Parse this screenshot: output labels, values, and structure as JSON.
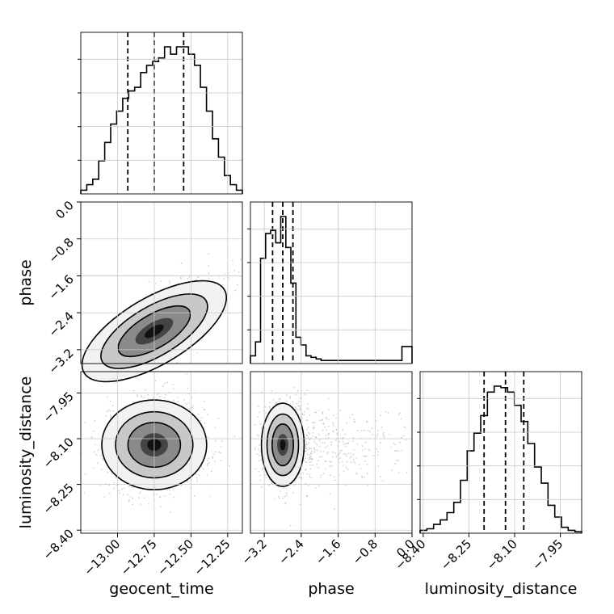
{
  "chart_data": {
    "type": "corner",
    "parameters": [
      "geocent_time",
      "phase",
      "luminosity_distance"
    ],
    "axis_labels": [
      "geocent_time",
      "phase",
      "luminosity_distance"
    ],
    "ranges": {
      "geocent_time": [
        -13.25,
        -12.15
      ],
      "phase": [
        -3.5,
        0.0
      ],
      "luminosity_distance": [
        -8.41,
        -7.88
      ]
    },
    "ticks": {
      "geocent_time": [
        "-13.00",
        "-12.75",
        "-12.50",
        "-12.25"
      ],
      "phase": [
        "-3.2",
        "-2.4",
        "-1.6",
        "-0.8",
        "0.0"
      ],
      "luminosity_distance": [
        "-8.40",
        "-8.25",
        "-8.10",
        "-7.95"
      ]
    },
    "tick_values": {
      "geocent_time": [
        -13.0,
        -12.75,
        -12.5,
        -12.25
      ],
      "phase": [
        -3.2,
        -2.4,
        -1.6,
        -0.8,
        0.0
      ],
      "luminosity_distance": [
        -8.4,
        -8.25,
        -8.1,
        -7.95
      ]
    },
    "quantiles": {
      "geocent_time": [
        -12.93,
        -12.75,
        -12.55
      ],
      "phase": [
        -3.02,
        -2.8,
        -2.58
      ],
      "luminosity_distance": [
        -8.2,
        -8.13,
        -8.07
      ]
    },
    "histograms": {
      "geocent_time": [
        2,
        5,
        8,
        18,
        28,
        38,
        45,
        52,
        56,
        58,
        66,
        70,
        72,
        74,
        80,
        76,
        80,
        80,
        76,
        70,
        58,
        45,
        30,
        20,
        10,
        5,
        2
      ],
      "phase": [
        5,
        14,
        68,
        84,
        86,
        78,
        95,
        75,
        52,
        17,
        12,
        5,
        4,
        3,
        2,
        2,
        2,
        2,
        2,
        2,
        2,
        2,
        2,
        2,
        2,
        2,
        2,
        2,
        2,
        2,
        11,
        11
      ],
      "luminosity_distance": [
        2,
        3,
        6,
        9,
        14,
        21,
        36,
        56,
        68,
        80,
        96,
        100,
        99,
        96,
        87,
        76,
        61,
        45,
        34,
        19,
        11,
        4,
        2,
        1
      ]
    },
    "scatter_centers": {
      "geocent_time_phase": [
        -12.75,
        -2.8
      ],
      "geocent_time_luminosity_distance": [
        -12.75,
        -8.12
      ],
      "phase_luminosity_distance": [
        -2.8,
        -8.12
      ]
    },
    "grid": true,
    "dashed_quantile_lines": true
  }
}
